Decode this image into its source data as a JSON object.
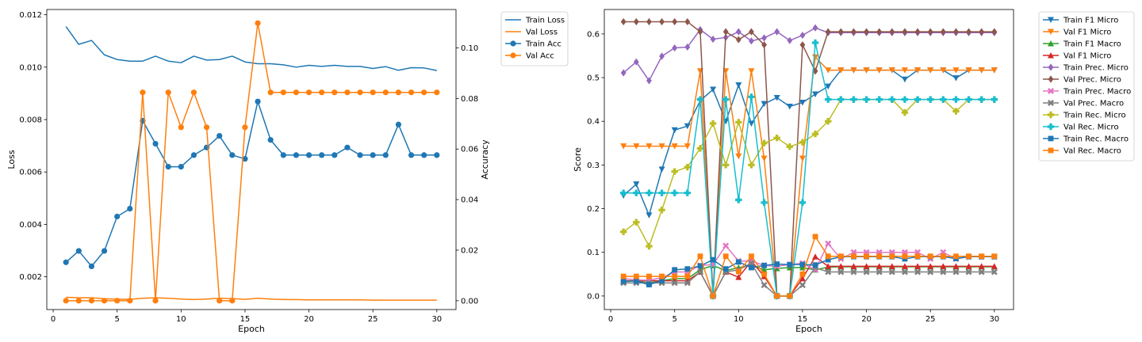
{
  "colors": {
    "blue": "#1f77b4",
    "orange": "#ff7f0e",
    "green": "#2ca02c",
    "red": "#d62728",
    "purple": "#9467bd",
    "brown": "#8c564b",
    "pink": "#e377c2",
    "gray": "#7f7f7f",
    "olive": "#bcbd22",
    "cyan": "#17becf"
  },
  "chart_data": [
    {
      "type": "line",
      "xlabel": "Epoch",
      "ylabel": "Loss",
      "y2label": "Accuracy",
      "xlim": [
        -0.5,
        31.5
      ],
      "ylim": [
        0.00075,
        0.0122
      ],
      "y2lim": [
        -0.0035,
        0.1152
      ],
      "xticks": [
        0,
        5,
        10,
        15,
        20,
        25,
        30
      ],
      "yticks": [
        0.002,
        0.004,
        0.006,
        0.008,
        0.01,
        0.012
      ],
      "ytick_labels": [
        "0.002",
        "0.004",
        "0.006",
        "0.008",
        "0.010",
        "0.012"
      ],
      "y2ticks": [
        0.0,
        0.02,
        0.04,
        0.06,
        0.08,
        0.1
      ],
      "y2tick_labels": [
        "0.00",
        "0.02",
        "0.04",
        "0.06",
        "0.08",
        "0.10"
      ],
      "grid": false,
      "legend_position": "outside-top-right",
      "x": [
        1,
        2,
        3,
        4,
        5,
        6,
        7,
        8,
        9,
        10,
        11,
        12,
        13,
        14,
        15,
        16,
        17,
        18,
        19,
        20,
        21,
        22,
        23,
        24,
        25,
        26,
        27,
        28,
        29,
        30
      ],
      "series": [
        {
          "name": "Train Loss",
          "axis": "left",
          "color": "blue",
          "marker": "none",
          "values": [
            0.01155,
            0.01087,
            0.01102,
            0.01047,
            0.01029,
            0.01023,
            0.01023,
            0.01042,
            0.01023,
            0.01017,
            0.01042,
            0.01027,
            0.01029,
            0.01042,
            0.0102,
            0.01013,
            0.01013,
            0.01009,
            0.01,
            0.01007,
            0.01003,
            0.01007,
            0.01003,
            0.01003,
            0.00995,
            0.01002,
            0.00988,
            0.00998,
            0.00997,
            0.00987
          ]
        },
        {
          "name": "Val Loss",
          "axis": "left",
          "color": "orange",
          "marker": "none",
          "values": [
            0.00122,
            0.0012,
            0.0012,
            0.00116,
            0.00115,
            0.00114,
            0.00118,
            0.0012,
            0.00118,
            0.00115,
            0.00113,
            0.00115,
            0.00118,
            0.00117,
            0.00114,
            0.00118,
            0.00115,
            0.00113,
            0.00113,
            0.00112,
            0.00112,
            0.00112,
            0.00112,
            0.00112,
            0.00111,
            0.00111,
            0.00111,
            0.00111,
            0.00111,
            0.00111
          ]
        },
        {
          "name": "Train Acc",
          "axis": "right",
          "color": "blue",
          "marker": "circle",
          "values": [
            0.0152,
            0.0197,
            0.0136,
            0.0197,
            0.0333,
            0.0364,
            0.0712,
            0.0621,
            0.053,
            0.053,
            0.0576,
            0.0606,
            0.0652,
            0.0576,
            0.0561,
            0.0788,
            0.0636,
            0.0576,
            0.0576,
            0.0576,
            0.0576,
            0.0576,
            0.0606,
            0.0576,
            0.0576,
            0.0576,
            0.0697,
            0.0576,
            0.0576,
            0.0576
          ]
        },
        {
          "name": "Val Acc",
          "axis": "right",
          "color": "orange",
          "marker": "circle",
          "values": [
            0.0,
            0.0,
            0.0,
            0.0,
            0.0,
            0.0,
            0.0824,
            0.0,
            0.0824,
            0.0686,
            0.0824,
            0.0686,
            0.0,
            0.0,
            0.0686,
            0.1098,
            0.0824,
            0.0824,
            0.0824,
            0.0824,
            0.0824,
            0.0824,
            0.0824,
            0.0824,
            0.0824,
            0.0824,
            0.0824,
            0.0824,
            0.0824,
            0.0824
          ]
        }
      ]
    },
    {
      "type": "line",
      "xlabel": "Epoch",
      "ylabel": "Score",
      "xlim": [
        -0.5,
        31.5
      ],
      "ylim": [
        -0.031,
        0.656
      ],
      "xticks": [
        0,
        5,
        10,
        15,
        20,
        25,
        30
      ],
      "yticks": [
        0.0,
        0.1,
        0.2,
        0.3,
        0.4,
        0.5,
        0.6
      ],
      "ytick_labels": [
        "0.0",
        "0.1",
        "0.2",
        "0.3",
        "0.4",
        "0.5",
        "0.6"
      ],
      "grid": false,
      "legend_position": "outside-top-right",
      "x": [
        1,
        2,
        3,
        4,
        5,
        6,
        7,
        8,
        9,
        10,
        11,
        12,
        13,
        14,
        15,
        16,
        17,
        18,
        19,
        20,
        21,
        22,
        23,
        24,
        25,
        26,
        27,
        28,
        29,
        30
      ],
      "series": [
        {
          "name": "Train F1 Micro",
          "color": "blue",
          "marker": "tri_down",
          "values": [
            0.23,
            0.256,
            0.185,
            0.29,
            0.38,
            0.389,
            0.447,
            0.473,
            0.4,
            0.483,
            0.395,
            0.44,
            0.454,
            0.434,
            0.443,
            0.462,
            0.48,
            0.517,
            0.517,
            0.517,
            0.517,
            0.517,
            0.496,
            0.517,
            0.517,
            0.517,
            0.499,
            0.517,
            0.517,
            0.517
          ]
        },
        {
          "name": "Val F1 Micro",
          "color": "orange",
          "marker": "tri_down",
          "values": [
            0.343,
            0.343,
            0.343,
            0.343,
            0.343,
            0.343,
            0.515,
            0.0,
            0.515,
            0.32,
            0.515,
            0.315,
            0.0,
            0.0,
            0.315,
            0.547,
            0.517,
            0.517,
            0.517,
            0.517,
            0.517,
            0.517,
            0.517,
            0.517,
            0.517,
            0.517,
            0.517,
            0.517,
            0.517,
            0.517
          ]
        },
        {
          "name": "Train F1 Macro",
          "color": "green",
          "marker": "tri_up",
          "values": [
            0.033,
            0.035,
            0.03,
            0.035,
            0.04,
            0.04,
            0.06,
            0.07,
            0.058,
            0.065,
            0.07,
            0.06,
            0.063,
            0.065,
            0.065,
            0.06,
            0.066,
            0.067,
            0.067,
            0.067,
            0.067,
            0.067,
            0.067,
            0.067,
            0.067,
            0.067,
            0.067,
            0.067,
            0.067,
            0.067
          ]
        },
        {
          "name": "Val F1 Micro",
          "color": "red",
          "marker": "tri_up",
          "values": [
            0.035,
            0.035,
            0.035,
            0.035,
            0.035,
            0.035,
            0.055,
            0.0,
            0.055,
            0.043,
            0.08,
            0.045,
            0.0,
            0.0,
            0.04,
            0.09,
            0.068,
            0.068,
            0.068,
            0.068,
            0.068,
            0.068,
            0.068,
            0.068,
            0.068,
            0.068,
            0.068,
            0.068,
            0.068,
            0.068
          ]
        },
        {
          "name": "Train Prec. Micro",
          "color": "purple",
          "marker": "diamond",
          "values": [
            0.511,
            0.536,
            0.493,
            0.549,
            0.568,
            0.57,
            0.61,
            0.588,
            0.592,
            0.605,
            0.584,
            0.591,
            0.605,
            0.585,
            0.597,
            0.614,
            0.603,
            0.603,
            0.603,
            0.603,
            0.603,
            0.603,
            0.603,
            0.603,
            0.603,
            0.603,
            0.603,
            0.603,
            0.603,
            0.603
          ]
        },
        {
          "name": "Val Prec. Micro",
          "color": "brown",
          "marker": "diamond",
          "values": [
            0.628,
            0.628,
            0.628,
            0.628,
            0.628,
            0.628,
            0.605,
            0.0,
            0.605,
            0.587,
            0.605,
            0.575,
            0.0,
            0.0,
            0.575,
            0.515,
            0.605,
            0.605,
            0.605,
            0.605,
            0.605,
            0.605,
            0.605,
            0.605,
            0.605,
            0.605,
            0.605,
            0.605,
            0.605,
            0.605
          ]
        },
        {
          "name": "Train Prec. Macro",
          "color": "pink",
          "marker": "x",
          "values": [
            0.04,
            0.037,
            0.036,
            0.042,
            0.055,
            0.055,
            0.07,
            0.072,
            0.115,
            0.08,
            0.08,
            0.07,
            0.068,
            0.072,
            0.075,
            0.06,
            0.12,
            0.085,
            0.1,
            0.1,
            0.1,
            0.1,
            0.1,
            0.1,
            0.085,
            0.1,
            0.085,
            0.09,
            0.09,
            0.09
          ]
        },
        {
          "name": "Val Prec. Macro",
          "color": "gray",
          "marker": "x",
          "values": [
            0.03,
            0.03,
            0.03,
            0.03,
            0.03,
            0.03,
            0.055,
            0.0,
            0.055,
            0.06,
            0.075,
            0.025,
            0.0,
            0.0,
            0.025,
            0.065,
            0.055,
            0.055,
            0.055,
            0.055,
            0.055,
            0.055,
            0.055,
            0.055,
            0.055,
            0.055,
            0.055,
            0.055,
            0.055,
            0.055
          ]
        },
        {
          "name": "Train Rec. Micro",
          "color": "olive",
          "marker": "plus",
          "values": [
            0.147,
            0.169,
            0.114,
            0.197,
            0.285,
            0.295,
            0.338,
            0.395,
            0.3,
            0.398,
            0.3,
            0.35,
            0.362,
            0.342,
            0.352,
            0.371,
            0.4,
            0.45,
            0.45,
            0.45,
            0.45,
            0.45,
            0.42,
            0.45,
            0.45,
            0.45,
            0.423,
            0.45,
            0.45,
            0.45
          ]
        },
        {
          "name": "Val Rec. Micro",
          "color": "cyan",
          "marker": "plus",
          "values": [
            0.236,
            0.236,
            0.236,
            0.236,
            0.236,
            0.236,
            0.45,
            0.0,
            0.45,
            0.22,
            0.456,
            0.214,
            0.0,
            0.0,
            0.214,
            0.58,
            0.45,
            0.45,
            0.45,
            0.45,
            0.45,
            0.45,
            0.45,
            0.45,
            0.45,
            0.45,
            0.45,
            0.45,
            0.45,
            0.45
          ]
        },
        {
          "name": "Train Rec. Macro",
          "color": "blue",
          "marker": "square",
          "values": [
            0.034,
            0.034,
            0.026,
            0.035,
            0.06,
            0.062,
            0.069,
            0.083,
            0.062,
            0.078,
            0.065,
            0.07,
            0.073,
            0.072,
            0.072,
            0.071,
            0.083,
            0.09,
            0.09,
            0.09,
            0.09,
            0.09,
            0.085,
            0.09,
            0.09,
            0.09,
            0.086,
            0.09,
            0.09,
            0.09
          ]
        },
        {
          "name": "Val Rec. Macro",
          "color": "orange",
          "marker": "square",
          "values": [
            0.045,
            0.045,
            0.045,
            0.045,
            0.045,
            0.045,
            0.091,
            0.0,
            0.091,
            0.056,
            0.091,
            0.05,
            0.0,
            0.0,
            0.05,
            0.136,
            0.091,
            0.091,
            0.091,
            0.091,
            0.091,
            0.091,
            0.091,
            0.091,
            0.091,
            0.091,
            0.091,
            0.091,
            0.091,
            0.091
          ]
        }
      ]
    }
  ]
}
